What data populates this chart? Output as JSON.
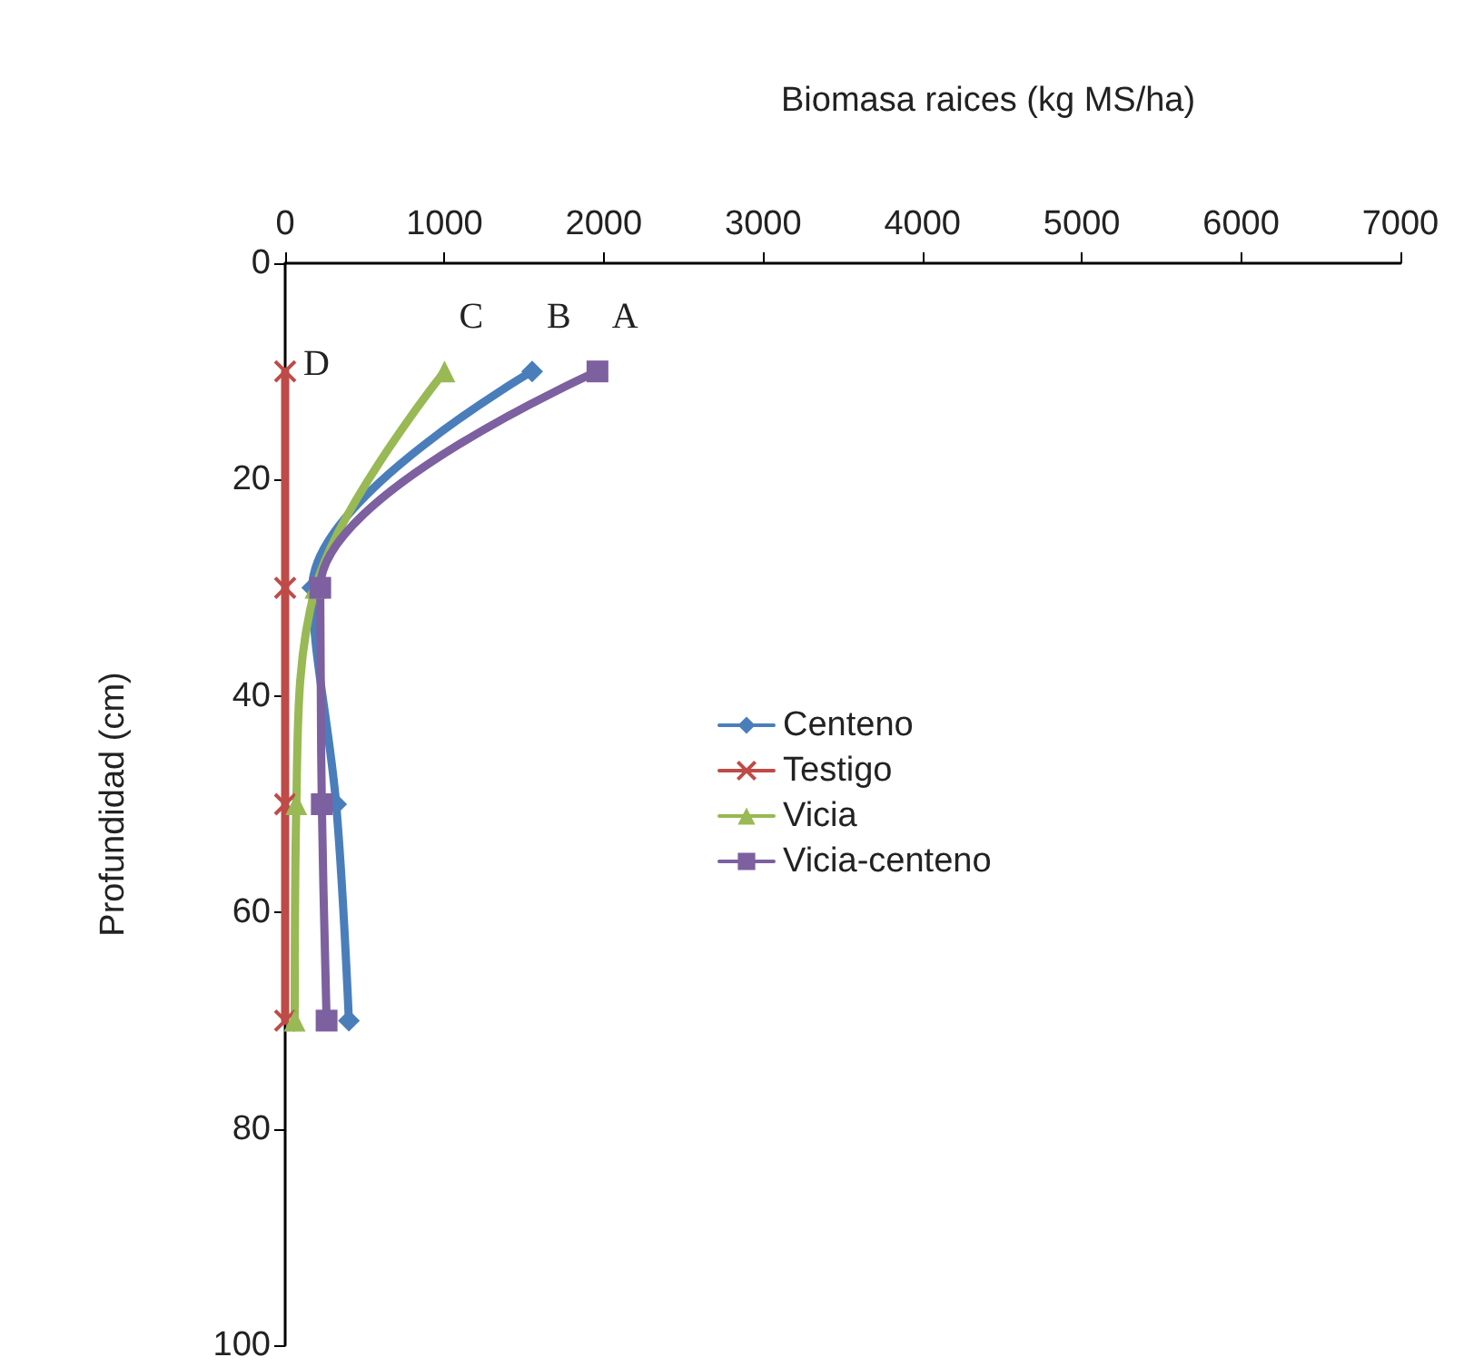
{
  "chart_data": {
    "type": "line",
    "orientation": "horizontal",
    "xlabel": "Biomasa raices (kg MS/ha)",
    "ylabel": "Profundidad (cm)",
    "x": [
      10,
      30,
      50,
      70
    ],
    "series": [
      {
        "name": "Centeno",
        "color": "#4a7ebb",
        "marker": "diamond",
        "values": [
          1550,
          170,
          320,
          400
        ]
      },
      {
        "name": "Testigo",
        "color": "#be4b48",
        "marker": "cross",
        "values": [
          0,
          0,
          0,
          0
        ]
      },
      {
        "name": "Vicia",
        "color": "#98b954",
        "marker": "triangle",
        "values": [
          1000,
          190,
          70,
          60
        ]
      },
      {
        "name": "Vicia-centeno",
        "color": "#7d60a0",
        "marker": "square",
        "values": [
          1960,
          220,
          230,
          260
        ]
      }
    ],
    "xlim": [
      0,
      7000
    ],
    "xticks": [
      0,
      1000,
      2000,
      3000,
      4000,
      5000,
      6000,
      7000
    ],
    "ylim": [
      100,
      0
    ],
    "yticks": [
      0,
      20,
      40,
      60,
      80,
      100
    ],
    "grid": false,
    "legend": "right",
    "line_style": "solid",
    "annotations": [
      {
        "text": "A",
        "x": 1960,
        "y": 10
      },
      {
        "text": "B",
        "x": 1550,
        "y": 10
      },
      {
        "text": "C",
        "x": 1000,
        "y": 10
      },
      {
        "text": "D",
        "x": 0,
        "y": 10
      }
    ]
  }
}
